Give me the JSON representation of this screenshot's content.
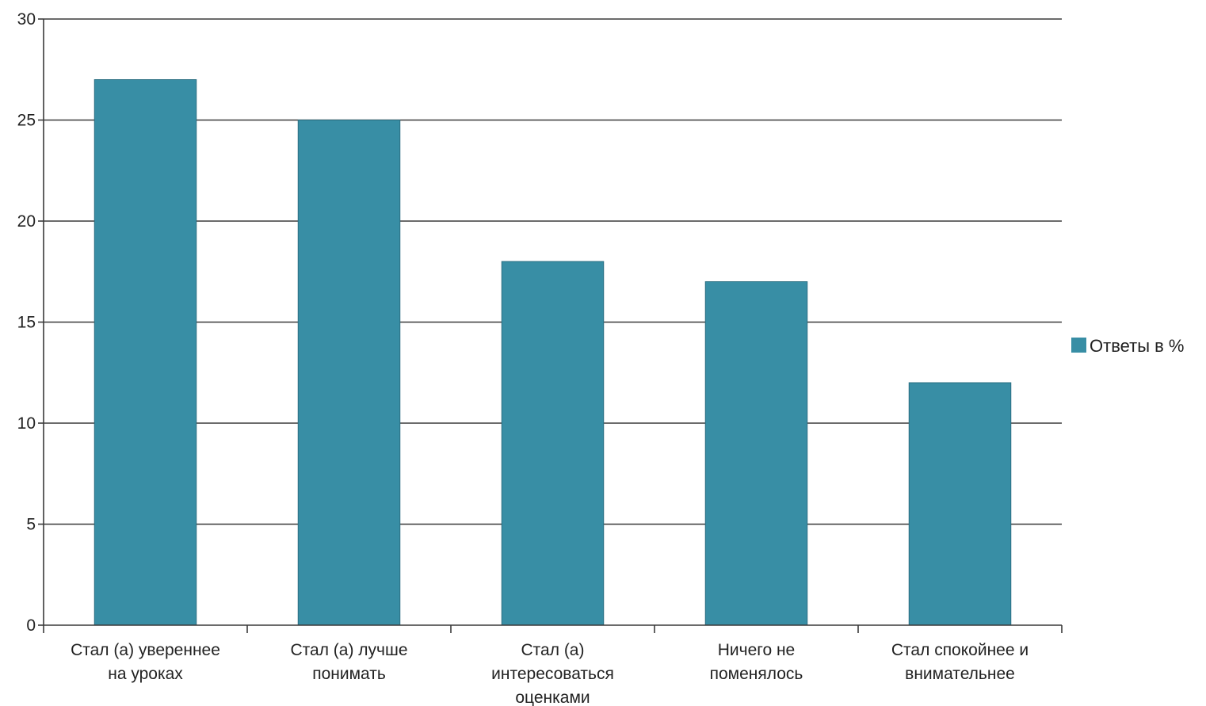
{
  "chart_data": {
    "type": "bar",
    "categories": [
      [
        "Стал (а) увереннее",
        "на уроках"
      ],
      [
        "Стал (а) лучше",
        "понимать"
      ],
      [
        "Стал (а)",
        "интересоваться",
        "оценками"
      ],
      [
        "Ничего не",
        "поменялось"
      ],
      [
        "Стал спокойнее и",
        "внимательнее"
      ]
    ],
    "series": [
      {
        "name": "Ответы в %",
        "values": [
          27,
          25,
          18,
          17,
          12
        ],
        "color": "#388ea5"
      }
    ],
    "ylim": [
      0,
      30
    ],
    "yticks": [
      0,
      5,
      10,
      15,
      20,
      25,
      30
    ],
    "grid": true,
    "legend_position": "right",
    "title": "",
    "xlabel": "",
    "ylabel": ""
  }
}
